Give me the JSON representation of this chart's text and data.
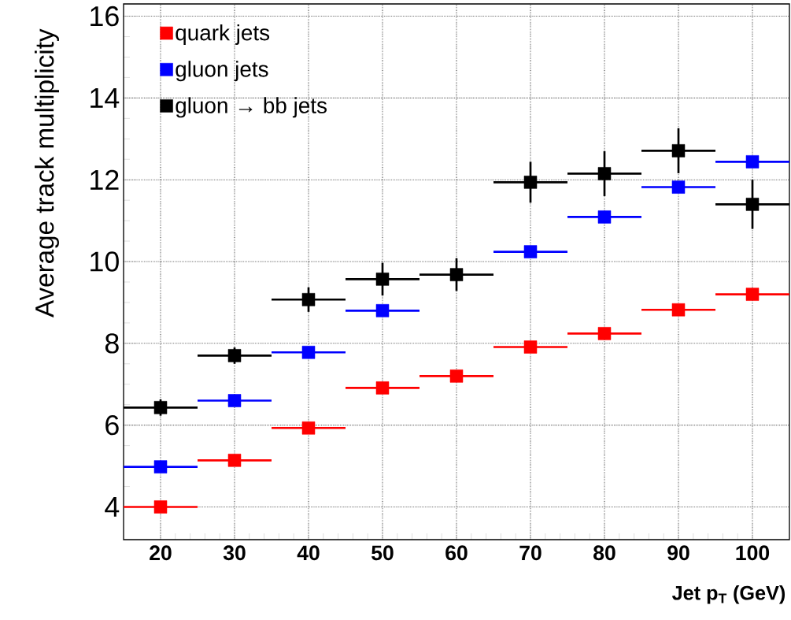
{
  "chart_data": {
    "type": "scatter",
    "xlabel": "Jet p$_{T}$ (GeV)",
    "ylabel": "Average track multiplicity",
    "x": [
      20,
      30,
      40,
      50,
      60,
      70,
      80,
      90,
      100
    ],
    "series": [
      {
        "name": "quark jets",
        "color": "#ff0000",
        "values": [
          4.0,
          5.14,
          5.93,
          6.91,
          7.2,
          7.91,
          8.24,
          8.82,
          9.2
        ],
        "xerrors": [
          5,
          5,
          5,
          5,
          5,
          5,
          5,
          5,
          5
        ]
      },
      {
        "name": "gluon jets",
        "color": "#0000ff",
        "values": [
          4.98,
          6.6,
          7.78,
          8.8,
          null,
          10.24,
          11.09,
          11.82,
          12.44
        ],
        "xerrors": [
          5,
          5,
          5,
          5,
          null,
          5,
          5,
          5,
          5
        ]
      },
      {
        "name": "gluon → bb jets",
        "color": "#000000",
        "values": [
          6.43,
          7.7,
          9.07,
          9.57,
          9.68,
          11.94,
          12.15,
          12.71,
          11.4
        ],
        "xerrors": [
          5,
          5,
          5,
          5,
          5,
          5,
          5,
          5,
          5
        ],
        "errors": [
          0.2,
          0.2,
          0.3,
          0.4,
          0.4,
          0.5,
          0.55,
          0.55,
          0.6
        ]
      }
    ],
    "xlim": [
      15,
      105
    ],
    "ylim": [
      3.2,
      16.3
    ],
    "xticks": [
      20,
      30,
      40,
      50,
      60,
      70,
      80,
      90,
      100
    ],
    "yticks": [
      4,
      6,
      8,
      10,
      12,
      14,
      16
    ],
    "grid": true,
    "legend": "top left",
    "marker": "square"
  }
}
